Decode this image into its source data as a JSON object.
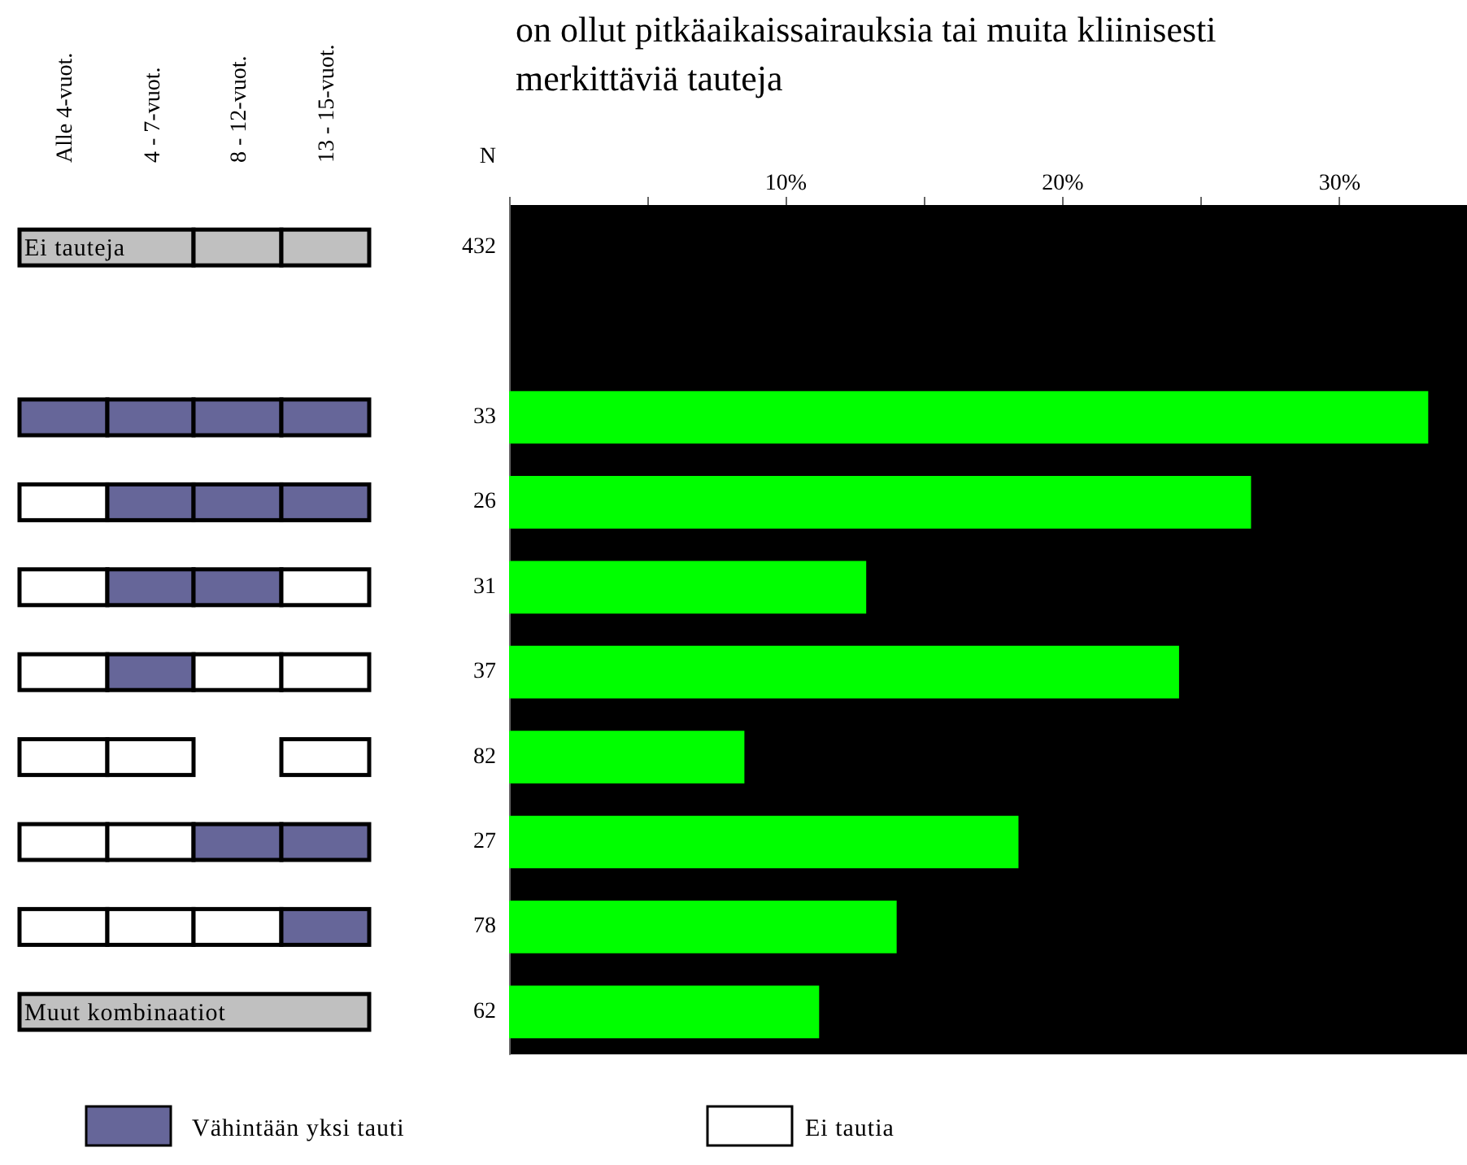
{
  "chart_data": {
    "type": "bar",
    "orientation": "horizontal",
    "title": "on ollut pitkäaikaissairauksia tai muita kliinisesti\nmerkittäviä tauteja",
    "categories": [
      "432",
      null,
      "33",
      "26",
      "31",
      "37",
      "82",
      "27",
      "78",
      "62"
    ],
    "series": [
      {
        "color": "#00ff00",
        "values": [
          null,
          null,
          33.2,
          26.8,
          12.9,
          24.2,
          8.5,
          18.4,
          14.0,
          11.2
        ]
      }
    ],
    "xlim": [
      0,
      34.6
    ],
    "xticks": [
      {
        "value": 0,
        "label": null
      },
      {
        "value": 5,
        "label": null
      },
      {
        "value": 10,
        "label": "10%"
      },
      {
        "value": 15,
        "label": null
      },
      {
        "value": 20,
        "label": "20%"
      },
      {
        "value": 25,
        "label": null
      },
      {
        "value": 30,
        "label": "30%"
      }
    ],
    "grid": false,
    "annotations": [
      "N",
      "Alle 4-vuot.",
      "4 - 7-vuot.",
      "8 - 12-vuot.",
      "13 - 15-vuot.",
      "Ei tauteja",
      "Muut kombinaatiot",
      "Vähintään yksi tauti",
      "Ei tautia"
    ]
  }
}
